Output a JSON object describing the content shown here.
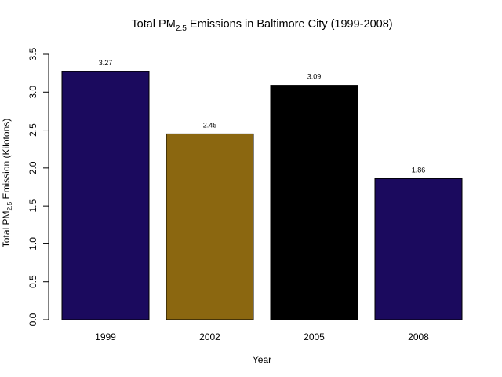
{
  "chart_data": {
    "type": "bar",
    "title": {
      "prefix": "Total PM",
      "subscript": "2.5",
      "suffix": " Emissions in Baltimore City (1999-2008)"
    },
    "xlabel": "Year",
    "ylabel": {
      "prefix": "Total PM",
      "subscript": "2.5",
      "suffix": " Emission (Kilotons)"
    },
    "categories": [
      "1999",
      "2002",
      "2005",
      "2008"
    ],
    "values": [
      3.27,
      2.45,
      3.09,
      1.86
    ],
    "data_labels": [
      "3.27",
      "2.45",
      "3.09",
      "1.86"
    ],
    "colors": [
      "#1b0a5e",
      "#8b6710",
      "#000000",
      "#1b0a5e"
    ],
    "ylim": [
      0,
      3.5
    ],
    "yticks": [
      0.0,
      0.5,
      1.0,
      1.5,
      2.0,
      2.5,
      3.0,
      3.5
    ],
    "ytick_labels": [
      "0.0",
      "0.5",
      "1.0",
      "1.5",
      "2.0",
      "2.5",
      "3.0",
      "3.5"
    ],
    "grid": false,
    "legend": "none"
  }
}
